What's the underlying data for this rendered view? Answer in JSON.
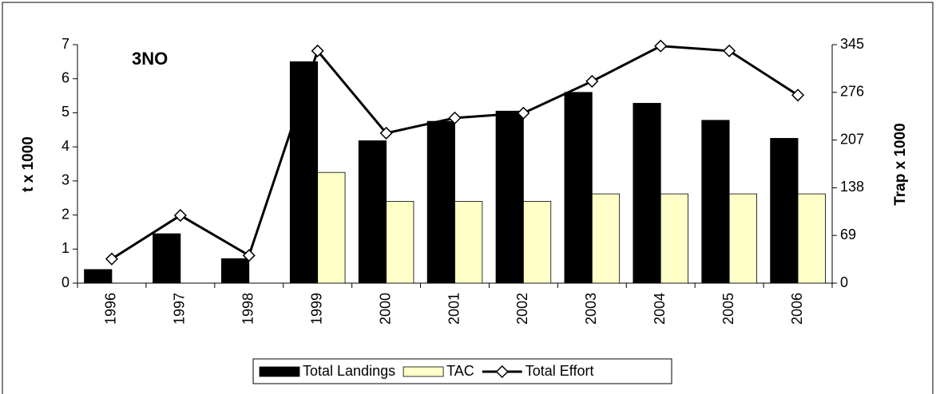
{
  "chart_data": {
    "type": "bar",
    "annotation": "3NO",
    "y_label": "t x 1000",
    "y2_label": "Trap x 1000",
    "categories": [
      "1996",
      "1997",
      "1998",
      "1999",
      "2000",
      "2001",
      "2002",
      "2003",
      "2004",
      "2005",
      "2006"
    ],
    "series": [
      {
        "name": "Total Landings",
        "type": "bar",
        "color": "#000000",
        "values": [
          0.4,
          1.45,
          0.72,
          6.5,
          4.18,
          4.75,
          5.05,
          5.6,
          5.28,
          4.78,
          4.25
        ]
      },
      {
        "name": "TAC",
        "type": "bar",
        "color": "#ffffc8",
        "values": [
          null,
          null,
          null,
          3.25,
          2.4,
          2.4,
          2.4,
          2.62,
          2.62,
          2.62,
          2.62
        ]
      },
      {
        "name": "Total Effort",
        "type": "line",
        "axis": "y2",
        "color": "#000000",
        "values": [
          35,
          98,
          40,
          336,
          217,
          239,
          246,
          292,
          343,
          336,
          272
        ]
      }
    ],
    "ylim": [
      0,
      7
    ],
    "yticks": [
      0,
      1,
      2,
      3,
      4,
      5,
      6,
      7
    ],
    "y2lim": [
      0,
      345
    ],
    "y2ticks": [
      0,
      69,
      138,
      207,
      276,
      345
    ],
    "grid": false,
    "legend": "bottom"
  }
}
